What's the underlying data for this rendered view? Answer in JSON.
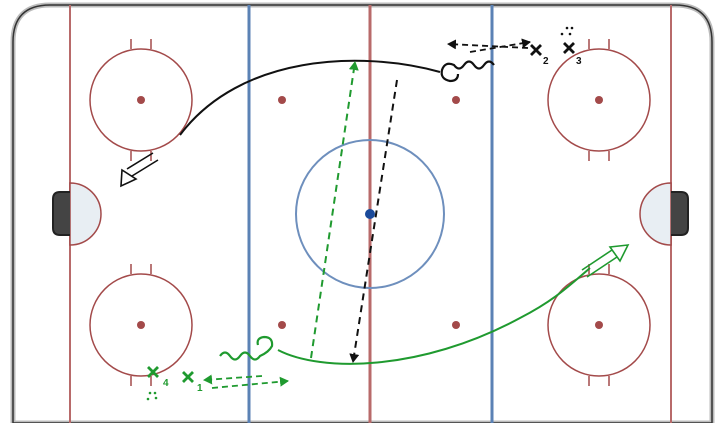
{
  "players": [
    {
      "label": "2",
      "team": "black"
    },
    {
      "label": "3",
      "team": "black"
    },
    {
      "label": "1",
      "team": "green"
    },
    {
      "label": "4",
      "team": "green"
    }
  ],
  "colors": {
    "board": "#222222",
    "red_line": "#b86a6a",
    "blue_line": "#5b82b5",
    "circle": "#a34a4a",
    "center_circle": "#6e8fbd",
    "center_dot": "#1a4a9a",
    "crease_fill": "#e8eef3",
    "black_team": "#111111",
    "green_team": "#1f9a2f"
  },
  "icons": {
    "player_marker": "x-mark",
    "puck": "dotted-triangle",
    "skate_path": "wavy-line",
    "pass_path": "dashed-arrow",
    "shot": "double-line-arrow"
  }
}
